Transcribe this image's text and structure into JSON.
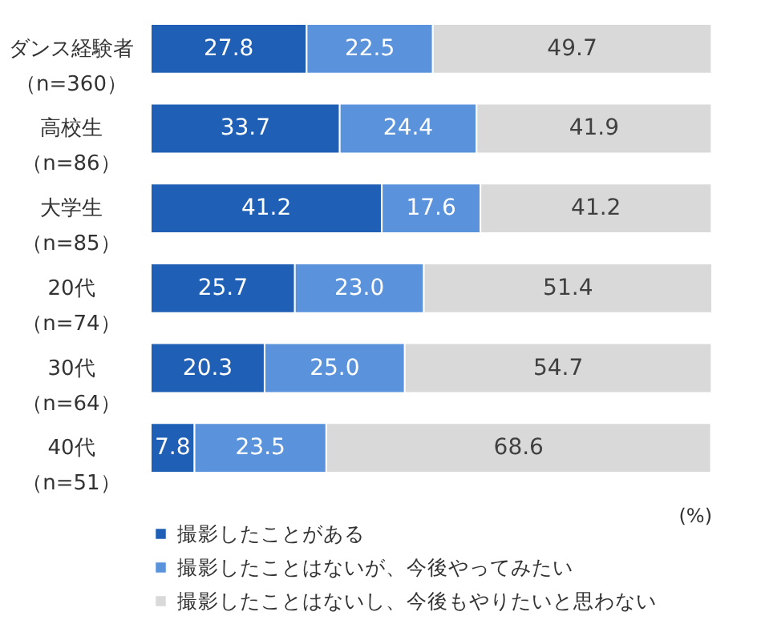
{
  "chart_data": {
    "type": "bar",
    "orientation": "horizontal",
    "stacked": true,
    "legend": "bottom left",
    "categories": [
      "ダンス経験者（n=360）",
      "高校生（n=86）",
      "大学生（n=85）",
      "20代（n=74）",
      "30代（n=64）",
      "40代（n=51）"
    ],
    "series": [
      {
        "name": "撮影したことがある",
        "color": "#1f5fb5",
        "values": [
          27.8,
          33.7,
          41.2,
          25.7,
          20.3,
          7.8
        ],
        "value_labels": [
          "27.8",
          "33.7",
          "41.2",
          "25.7",
          "20.3",
          "7.8"
        ]
      },
      {
        "name": "撮影したことはないが、今後やってみたい",
        "color": "#5a93dc",
        "values": [
          22.5,
          24.4,
          17.6,
          23.0,
          25.0,
          23.5
        ],
        "value_labels": [
          "22.5",
          "24.4",
          "17.6",
          "23.0",
          "25.0",
          "23.5"
        ]
      },
      {
        "name": "撮影したことはないし、今後もやりたいと思わない",
        "color": "#d9d9d9",
        "values": [
          49.7,
          41.9,
          41.2,
          51.4,
          54.7,
          68.6
        ],
        "value_labels": [
          "49.7",
          "41.9",
          "41.2",
          "51.4",
          "54.7",
          "68.6"
        ]
      }
    ],
    "annotations": [
      "(%)"
    ]
  }
}
